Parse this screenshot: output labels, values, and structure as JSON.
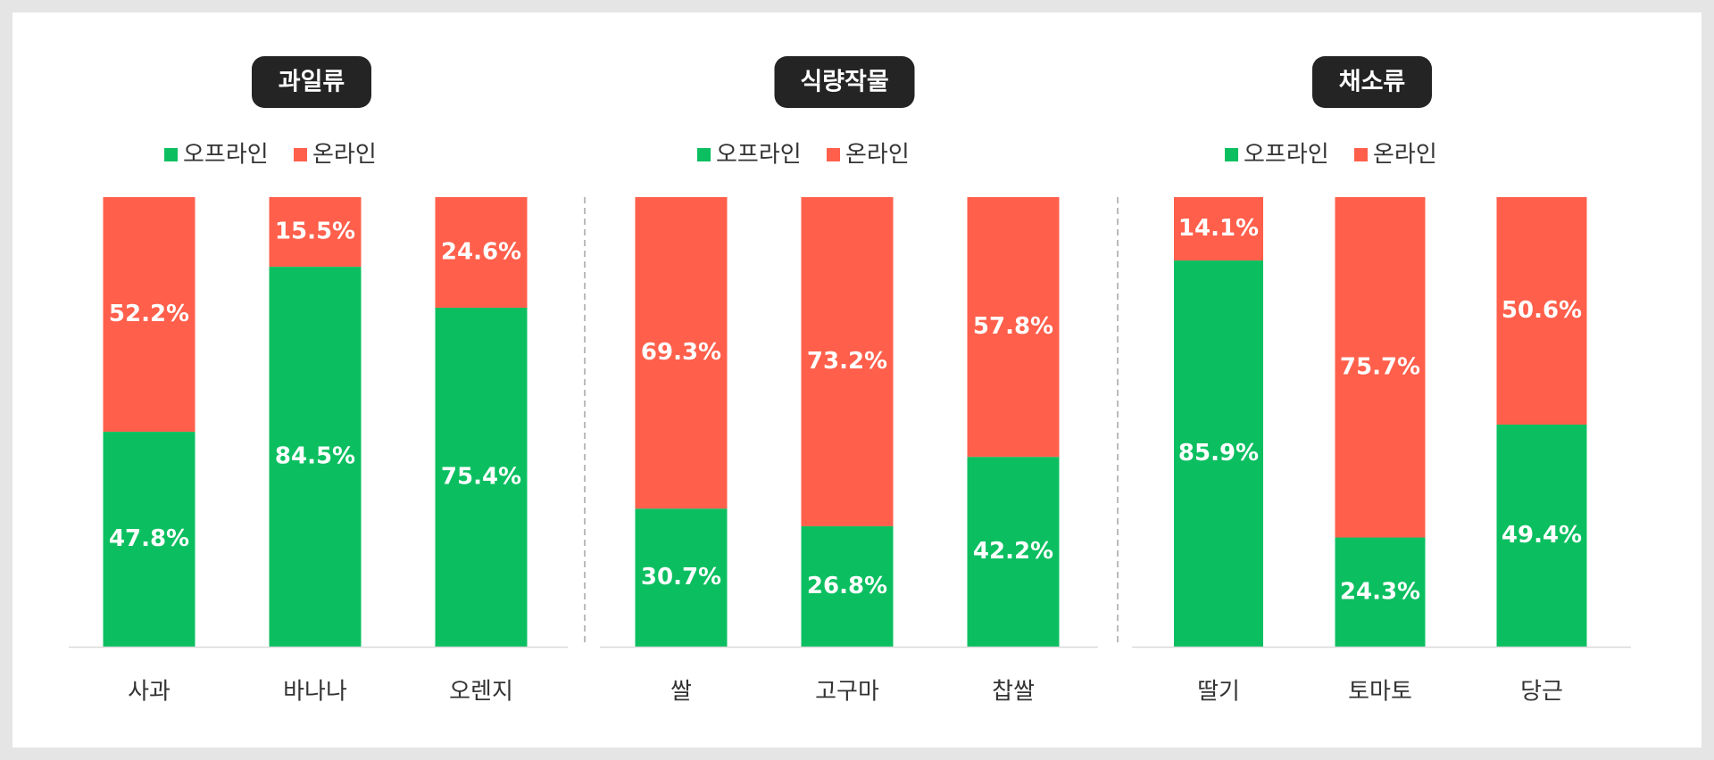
{
  "colors": {
    "offline": "#0bbf60",
    "online": "#ff5f4b",
    "title_bg": "#242424",
    "divider": "#bbbbbb",
    "baseline": "#d9d9d9"
  },
  "legend": {
    "offline_label": "오프라인",
    "online_label": "온라인"
  },
  "chart_data": [
    {
      "type": "bar",
      "stacked": true,
      "title": "과일류",
      "categories": [
        "사과",
        "바나나",
        "오렌지"
      ],
      "series": [
        {
          "name": "오프라인",
          "values": [
            47.8,
            84.5,
            75.4
          ],
          "labels": [
            "47.8%",
            "84.5%",
            "75.4%"
          ]
        },
        {
          "name": "온라인",
          "values": [
            52.2,
            15.5,
            24.6
          ],
          "labels": [
            "52.2%",
            "15.5%",
            "24.6%"
          ]
        }
      ],
      "ylim": [
        0,
        100
      ]
    },
    {
      "type": "bar",
      "stacked": true,
      "title": "식량작물",
      "categories": [
        "쌀",
        "고구마",
        "찹쌀"
      ],
      "series": [
        {
          "name": "오프라인",
          "values": [
            30.7,
            26.8,
            42.2
          ],
          "labels": [
            "30.7%",
            "26.8%",
            "42.2%"
          ]
        },
        {
          "name": "온라인",
          "values": [
            69.3,
            73.2,
            57.8
          ],
          "labels": [
            "69.3%",
            "73.2%",
            "57.8%"
          ]
        }
      ],
      "ylim": [
        0,
        100
      ]
    },
    {
      "type": "bar",
      "stacked": true,
      "title": "채소류",
      "categories": [
        "딸기",
        "토마토",
        "당근"
      ],
      "series": [
        {
          "name": "오프라인",
          "values": [
            85.9,
            24.3,
            49.4
          ],
          "labels": [
            "85.9%",
            "24.3%",
            "49.4%"
          ]
        },
        {
          "name": "온라인",
          "values": [
            14.1,
            75.7,
            50.6
          ],
          "labels": [
            "14.1%",
            "75.7%",
            "50.6%"
          ]
        }
      ],
      "ylim": [
        0,
        100
      ]
    }
  ]
}
